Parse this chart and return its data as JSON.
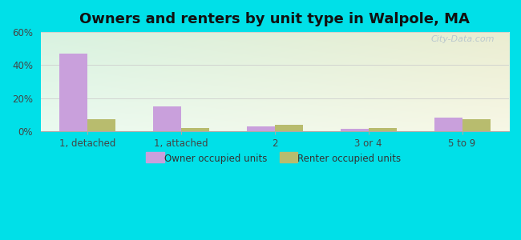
{
  "title": "Owners and renters by unit type in Walpole, MA",
  "categories": [
    "1, detached",
    "1, attached",
    "2",
    "3 or 4",
    "5 to 9"
  ],
  "owner_values": [
    47,
    15,
    3,
    1.5,
    8
  ],
  "renter_values": [
    7,
    2,
    4,
    2,
    7
  ],
  "owner_color": "#c9a0dc",
  "renter_color": "#b8bc6e",
  "background_outer": "#00e0e8",
  "ylim": [
    0,
    60
  ],
  "yticks": [
    0,
    20,
    40,
    60
  ],
  "ytick_labels": [
    "0%",
    "20%",
    "40%",
    "60%"
  ],
  "bar_width": 0.3,
  "title_fontsize": 13,
  "legend_owner": "Owner occupied units",
  "legend_renter": "Renter occupied units",
  "watermark": "City-Data.com",
  "grid_color": "#cccccc",
  "bg_top_left": "#d4ede0",
  "bg_top_right": "#e8f0d8",
  "bg_bottom_left": "#e8f5ee",
  "bg_bottom_right": "#f5f5e8"
}
